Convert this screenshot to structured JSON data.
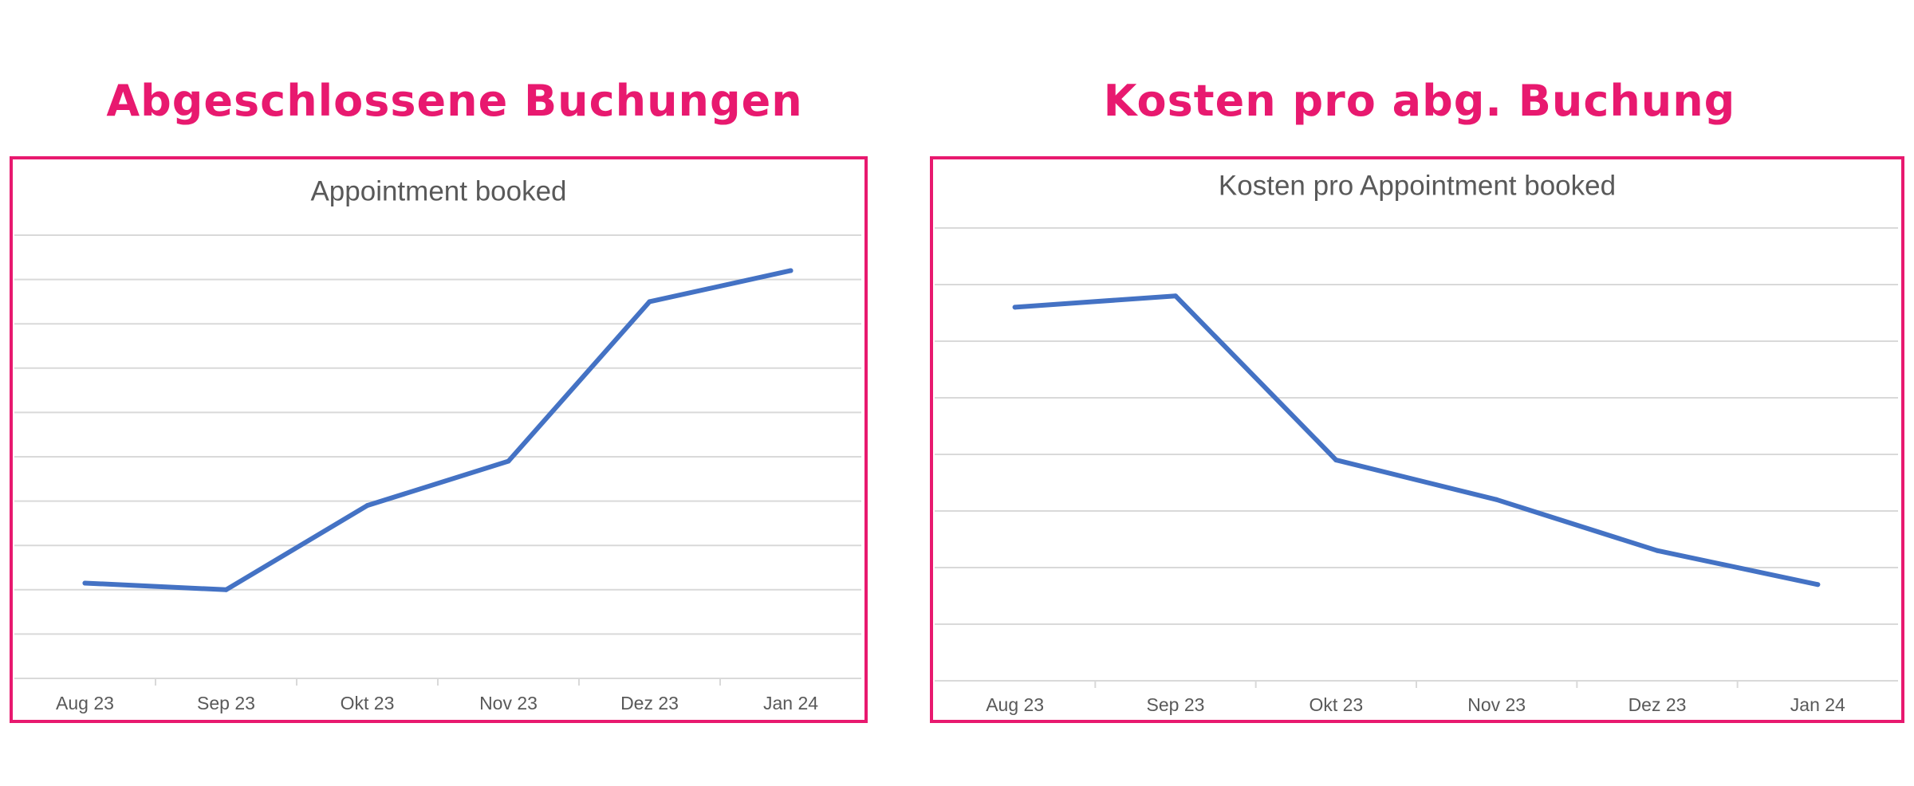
{
  "page": {
    "heading_left": "Abgeschlossene Buchungen",
    "heading_right": "Kosten pro abg. Buchung",
    "accent_color": "#e8196f",
    "line_color": "#4472c4",
    "grid_color": "#d9d9d9",
    "text_color": "#595959"
  },
  "chart_data": [
    {
      "type": "line",
      "title": "Appointment booked",
      "xlabel": "",
      "ylabel": "",
      "categories": [
        "Aug 23",
        "Sep 23",
        "Okt 23",
        "Nov 23",
        "Dez 23",
        "Jan 24"
      ],
      "series": [
        {
          "values": [
            2.15,
            2.0,
            3.9,
            4.9,
            8.5,
            9.2
          ]
        }
      ],
      "ylim": [
        0,
        10
      ],
      "y_tick_labels_shown": false,
      "grid": true,
      "legend": "none"
    },
    {
      "type": "line",
      "title": "Kosten pro Appointment booked",
      "xlabel": "",
      "ylabel": "",
      "categories": [
        "Aug 23",
        "Sep 23",
        "Okt 23",
        "Nov 23",
        "Dez 23",
        "Jan 24"
      ],
      "series": [
        {
          "values": [
            6.6,
            6.8,
            3.9,
            3.2,
            2.3,
            1.7
          ]
        }
      ],
      "ylim": [
        0,
        8
      ],
      "y_tick_labels_shown": false,
      "grid": true,
      "legend": "none"
    }
  ]
}
